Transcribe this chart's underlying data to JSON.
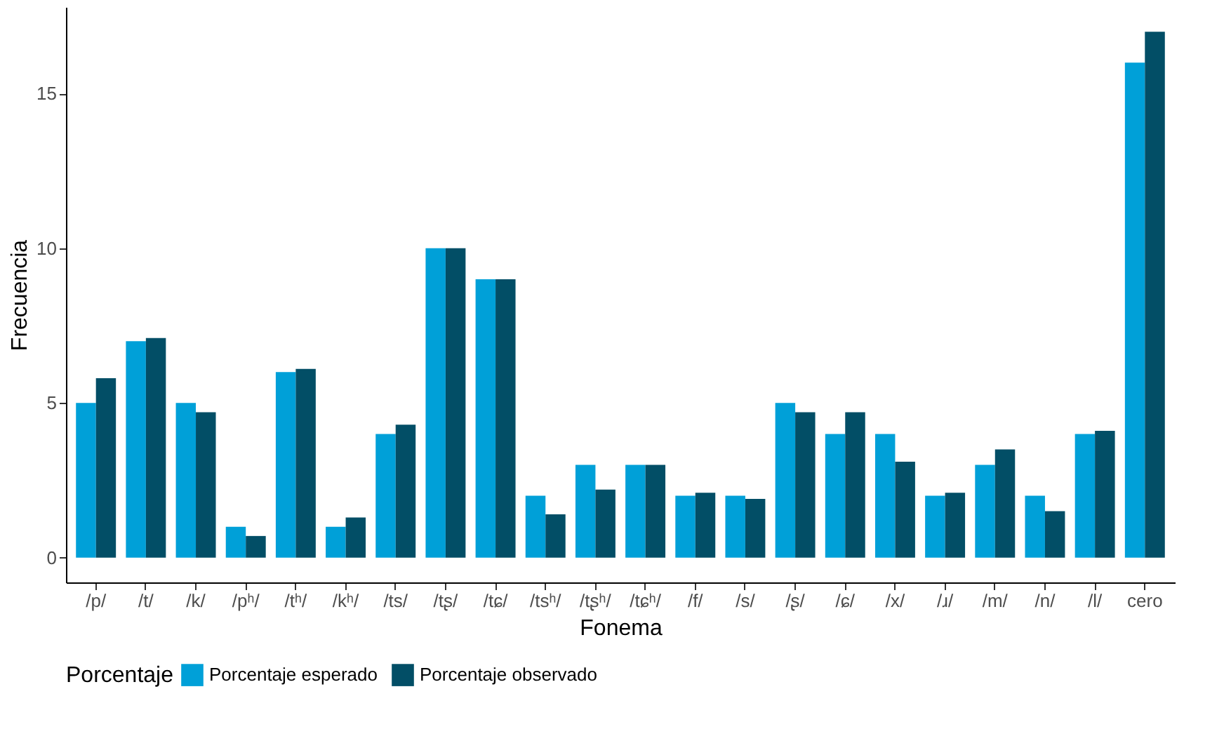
{
  "chart_data": {
    "type": "bar",
    "xlabel": "Fonema",
    "ylabel": "Frecuencia",
    "legend_title": "Porcentaje",
    "categories": [
      "/p/",
      "/t/",
      "/k/",
      "/pʰ/",
      "/tʰ/",
      "/kʰ/",
      "/ts/",
      "/tʂ/",
      "/tɕ/",
      "/tsʰ/",
      "/tʂʰ/",
      "/tɕʰ/",
      "/f/",
      "/s/",
      "/ʂ/",
      "/ɕ/",
      "/x/",
      "/ɹ/",
      "/m/",
      "/n/",
      "/l/",
      "cero"
    ],
    "series": [
      {
        "name": "Porcentaje esperado",
        "color": "#00a0d8",
        "values": [
          5,
          7,
          5,
          1,
          6,
          1,
          4,
          10,
          9,
          2,
          3,
          3,
          2,
          2,
          5,
          4,
          4,
          2,
          3,
          2,
          4,
          16
        ]
      },
      {
        "name": "Porcentaje observado",
        "color": "#024e66",
        "values": [
          5.8,
          7.1,
          4.7,
          0.7,
          6.1,
          1.3,
          4.3,
          10,
          9,
          1.4,
          2.2,
          3.0,
          2.1,
          1.9,
          4.7,
          4.7,
          3.1,
          2.1,
          3.5,
          1.5,
          4.1,
          17.0
        ]
      }
    ],
    "ylim": [
      -0.8,
      17.8
    ],
    "yticks": [
      0,
      5,
      10,
      15
    ],
    "grid": false,
    "legend": "bottom"
  }
}
